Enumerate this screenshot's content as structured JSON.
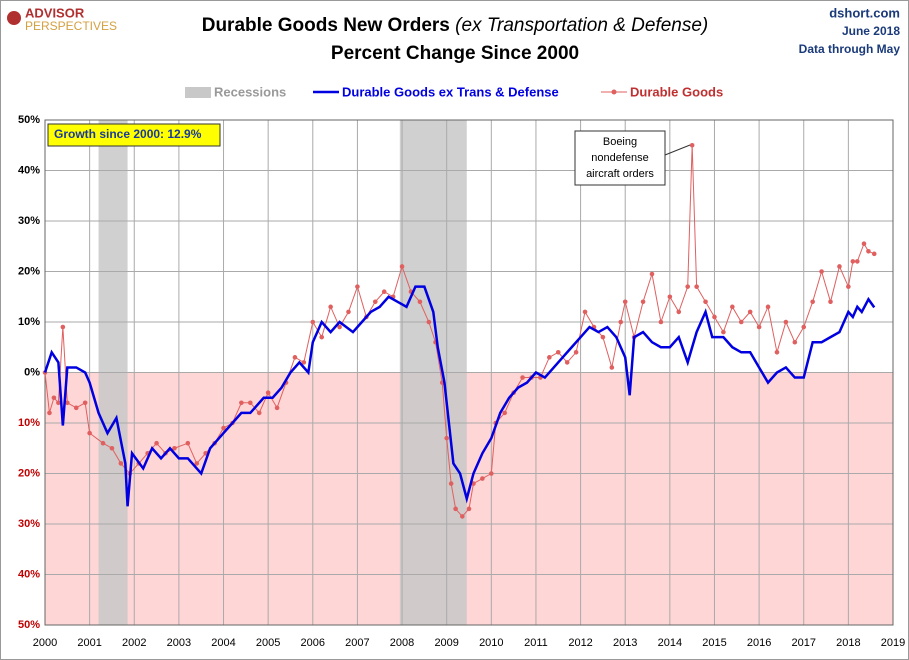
{
  "chart_data": {
    "type": "line",
    "brand": [
      "ADVISOR",
      "PERSPECTIVES"
    ],
    "title": "Durable Goods New Orders",
    "title_italic": "(ex Transportation & Defense)",
    "subtitle": "Percent Change Since 2000",
    "source": [
      "dshort.com",
      "June 2018",
      "Data through May"
    ],
    "annotations": {
      "growth": "Growth since 2000:  12.9%",
      "boeing": [
        "Boeing",
        "nondefense",
        "aircraft orders"
      ]
    },
    "recessions": {
      "name": "Recessions",
      "color": "#c8c8c8",
      "spans": [
        [
          2001.2,
          2001.85
        ],
        [
          2007.95,
          2009.45
        ]
      ]
    },
    "xlim": [
      2000,
      2019
    ],
    "xticks": [
      2000,
      2001,
      2002,
      2003,
      2004,
      2005,
      2006,
      2007,
      2008,
      2009,
      2010,
      2011,
      2012,
      2013,
      2014,
      2015,
      2016,
      2017,
      2018,
      2019
    ],
    "ylim": [
      -50,
      50
    ],
    "yticks": [
      {
        "value": -50,
        "label": "50%"
      },
      {
        "value": -40,
        "label": "40%"
      },
      {
        "value": -30,
        "label": "30%"
      },
      {
        "value": -20,
        "label": "20%"
      },
      {
        "value": -10,
        "label": "10%"
      },
      {
        "value": 0,
        "label": "0%"
      },
      {
        "value": 10,
        "label": "10%"
      },
      {
        "value": 20,
        "label": "20%"
      },
      {
        "value": 30,
        "label": "30%"
      },
      {
        "value": 40,
        "label": "40%"
      },
      {
        "value": 50,
        "label": "50%"
      }
    ],
    "grid": true,
    "series": [
      {
        "name": "Durable Goods ex Trans & Defense",
        "color": "#0000e0",
        "markers": false,
        "x": [
          2000.0,
          2000.15,
          2000.3,
          2000.4,
          2000.5,
          2000.7,
          2000.9,
          2001.0,
          2001.2,
          2001.4,
          2001.6,
          2001.8,
          2001.85,
          2001.95,
          2002.2,
          2002.4,
          2002.6,
          2002.8,
          2003.0,
          2003.2,
          2003.4,
          2003.5,
          2003.7,
          2004.0,
          2004.2,
          2004.4,
          2004.6,
          2004.9,
          2005.1,
          2005.3,
          2005.5,
          2005.7,
          2005.9,
          2006.0,
          2006.2,
          2006.4,
          2006.6,
          2006.9,
          2007.1,
          2007.3,
          2007.5,
          2007.7,
          2007.9,
          2008.1,
          2008.3,
          2008.5,
          2008.7,
          2008.8,
          2008.95,
          2009.05,
          2009.15,
          2009.3,
          2009.45,
          2009.6,
          2009.8,
          2010.0,
          2010.2,
          2010.4,
          2010.6,
          2010.8,
          2011.0,
          2011.2,
          2011.4,
          2011.6,
          2011.8,
          2012.0,
          2012.2,
          2012.4,
          2012.6,
          2012.8,
          2013.0,
          2013.1,
          2013.2,
          2013.4,
          2013.6,
          2013.8,
          2014.0,
          2014.2,
          2014.4,
          2014.6,
          2014.8,
          2014.95,
          2015.2,
          2015.4,
          2015.6,
          2015.8,
          2016.0,
          2016.2,
          2016.4,
          2016.6,
          2016.8,
          2017.0,
          2017.2,
          2017.4,
          2017.6,
          2017.8,
          2018.0,
          2018.1,
          2018.2,
          2018.3,
          2018.45,
          2018.58
        ],
        "values": [
          0,
          4,
          2,
          -10.5,
          1,
          1,
          0,
          -2,
          -8,
          -12,
          -9,
          -18,
          -26.5,
          -16,
          -19,
          -15,
          -17,
          -15,
          -17,
          -17,
          -19,
          -20,
          -15,
          -12,
          -10,
          -8,
          -8,
          -5,
          -5,
          -3,
          0,
          2,
          0,
          6,
          10,
          8,
          10,
          8,
          10,
          12,
          13,
          15,
          14,
          13,
          17,
          17,
          12,
          5,
          -2,
          -10,
          -18,
          -20,
          -25,
          -20,
          -16,
          -13,
          -8,
          -5,
          -3,
          -2,
          0,
          -1,
          1,
          3,
          5,
          7,
          9,
          8,
          9,
          7,
          3,
          -4.5,
          7,
          8,
          6,
          5,
          5,
          7,
          2,
          8,
          12,
          7,
          7,
          5,
          4,
          4,
          1,
          -2,
          0,
          1,
          -1,
          -1,
          6,
          6,
          7,
          8,
          12,
          11,
          13,
          12,
          14.5,
          12.9
        ]
      },
      {
        "name": "Durable Goods",
        "color": "#e06060",
        "markers": true,
        "x": [
          2000.0,
          2000.1,
          2000.2,
          2000.3,
          2000.4,
          2000.5,
          2000.7,
          2000.9,
          2001.0,
          2001.3,
          2001.5,
          2001.7,
          2001.9,
          2002.1,
          2002.3,
          2002.5,
          2002.7,
          2002.9,
          2003.2,
          2003.4,
          2003.6,
          2003.8,
          2004.0,
          2004.2,
          2004.4,
          2004.6,
          2004.8,
          2005.0,
          2005.2,
          2005.4,
          2005.6,
          2005.8,
          2006.0,
          2006.2,
          2006.4,
          2006.6,
          2006.8,
          2007.0,
          2007.2,
          2007.4,
          2007.6,
          2007.8,
          2008.0,
          2008.2,
          2008.4,
          2008.6,
          2008.75,
          2008.9,
          2009.0,
          2009.1,
          2009.2,
          2009.35,
          2009.5,
          2009.6,
          2009.8,
          2010.0,
          2010.1,
          2010.3,
          2010.5,
          2010.7,
          2010.9,
          2011.1,
          2011.3,
          2011.5,
          2011.7,
          2011.9,
          2012.1,
          2012.3,
          2012.5,
          2012.7,
          2012.9,
          2013.0,
          2013.2,
          2013.4,
          2013.6,
          2013.8,
          2014.0,
          2014.2,
          2014.4,
          2014.5,
          2014.6,
          2014.8,
          2015.0,
          2015.2,
          2015.4,
          2015.6,
          2015.8,
          2016.0,
          2016.2,
          2016.4,
          2016.6,
          2016.8,
          2017.0,
          2017.2,
          2017.4,
          2017.6,
          2017.8,
          2018.0,
          2018.1,
          2018.2,
          2018.35,
          2018.45,
          2018.58
        ],
        "values": [
          0,
          -8,
          -5,
          -6,
          9,
          -6,
          -7,
          -6,
          -12,
          -14,
          -15,
          -18,
          -20,
          -18,
          -16,
          -14,
          -16,
          -15,
          -14,
          -18,
          -16,
          -14,
          -11,
          -10,
          -6,
          -6,
          -8,
          -4,
          -7,
          -2,
          3,
          2,
          10,
          7,
          13,
          9,
          12,
          17,
          11,
          14,
          16,
          15,
          21,
          16,
          14,
          10,
          6,
          -2,
          -13,
          -22,
          -27,
          -28.5,
          -27,
          -22,
          -21,
          -20,
          -10,
          -8,
          -4,
          -1,
          -1,
          -1,
          3,
          4,
          2,
          4,
          12,
          9,
          7,
          1,
          10,
          14,
          7,
          14,
          19.5,
          10,
          15,
          12,
          17,
          45,
          17,
          14,
          11,
          8,
          13,
          10,
          12,
          9,
          13,
          4,
          10,
          6,
          9,
          14,
          20,
          14,
          21,
          17,
          22,
          22,
          25.5,
          24,
          23.5
        ]
      }
    ]
  }
}
